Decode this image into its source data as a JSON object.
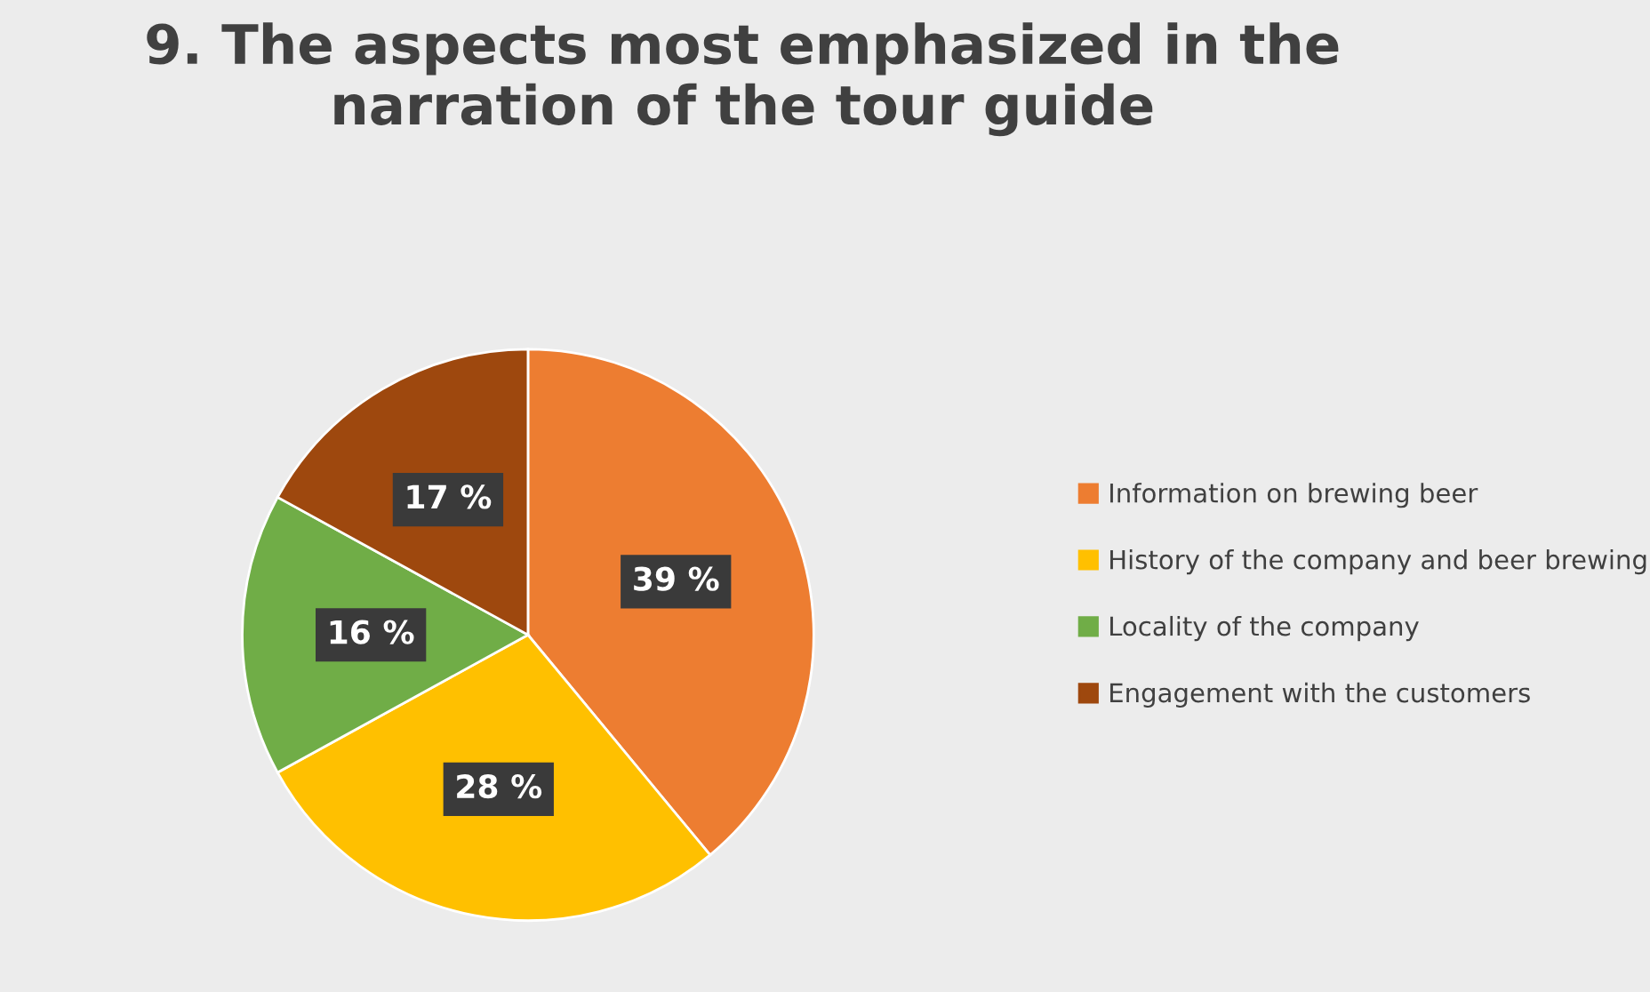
{
  "chart_data": {
    "type": "pie",
    "title": "9. The aspects most emphasized in the narration of the tour guide",
    "categories": [
      "Information on brewing beer",
      "History of the company and beer brewing",
      "Locality of the company",
      "Engagement with the customers"
    ],
    "values": [
      39,
      28,
      16,
      17
    ],
    "colors": [
      "#ed7d31",
      "#ffc000",
      "#70ad47",
      "#9e480e"
    ],
    "value_labels": [
      "39 %",
      "28 %",
      "16 %",
      "17 %"
    ],
    "legend": "right"
  }
}
